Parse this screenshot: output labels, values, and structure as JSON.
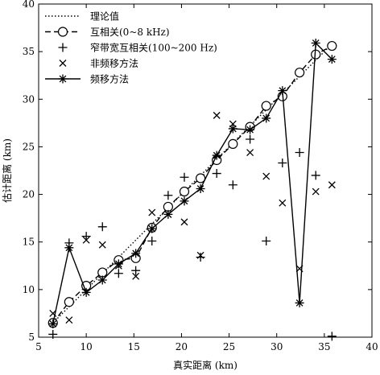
{
  "chart_data": {
    "type": "line",
    "title": "",
    "xlabel": "真实距离 (km)",
    "ylabel": "估计距离 (km)",
    "xlim": [
      5,
      40
    ],
    "ylim": [
      5,
      40
    ],
    "xticks": [
      5,
      10,
      15,
      20,
      25,
      30,
      35,
      40
    ],
    "yticks": [
      5,
      10,
      15,
      20,
      25,
      30,
      35,
      40
    ],
    "grid": false,
    "legend_position": "top-left",
    "x": [
      6.5,
      8.2,
      10.0,
      11.7,
      13.4,
      15.2,
      16.9,
      18.6,
      20.3,
      22.0,
      23.7,
      25.4,
      27.2,
      28.9,
      30.6,
      32.4,
      34.1,
      35.8
    ],
    "series": [
      {
        "name": "理论值",
        "style": "dotted",
        "marker": "none",
        "x": [
          6.5,
          35.8
        ],
        "y": [
          6.5,
          35.8
        ]
      },
      {
        "name": "互相关(0~8 kHz)",
        "style": "dashed",
        "marker": "circle",
        "y": [
          6.5,
          8.7,
          10.4,
          11.8,
          13.1,
          13.3,
          16.5,
          18.7,
          20.3,
          21.7,
          23.6,
          25.3,
          27.1,
          29.3,
          30.3,
          32.8,
          34.7,
          35.6
        ]
      },
      {
        "name": "窄带宽互相关(100~200 Hz)",
        "style": "none",
        "marker": "plus",
        "y": [
          5.3,
          14.9,
          15.6,
          16.6,
          11.7,
          12.0,
          15.1,
          19.9,
          21.8,
          13.4,
          22.2,
          21.0,
          25.8,
          15.1,
          23.3,
          24.4,
          22.0,
          5.1
        ]
      },
      {
        "name": "非频移方法",
        "style": "none",
        "marker": "x",
        "y": [
          7.5,
          6.8,
          15.2,
          14.7,
          12.5,
          11.4,
          18.1,
          17.9,
          17.1,
          13.6,
          28.3,
          27.4,
          24.4,
          21.9,
          19.1,
          12.2,
          20.3,
          21.0
        ]
      },
      {
        "name": "频移方法",
        "style": "solid",
        "marker": "star",
        "y": [
          6.4,
          14.4,
          9.7,
          11.0,
          12.7,
          13.8,
          16.4,
          17.9,
          19.3,
          20.6,
          24.1,
          26.9,
          26.8,
          28.0,
          30.9,
          8.6,
          35.9,
          34.2
        ]
      }
    ]
  }
}
